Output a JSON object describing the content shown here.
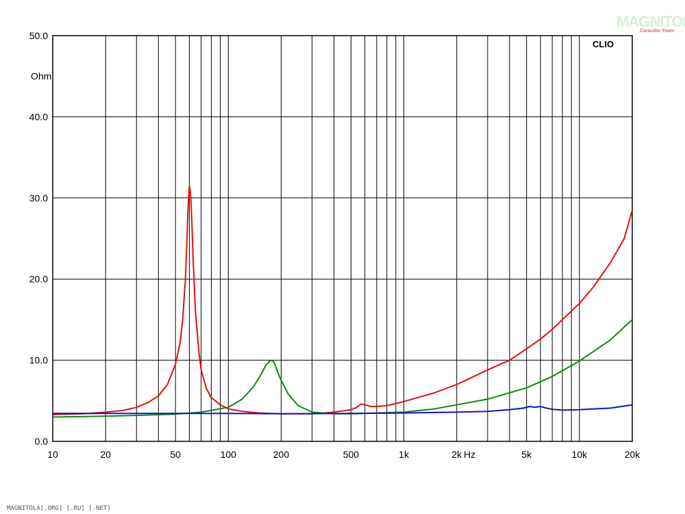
{
  "watermark": {
    "logo_text": "MAGNITOLA",
    "logo_sub": "Caraudio Team"
  },
  "footer": "MAGNITOLA[.ORG] [.RU] [.NET]",
  "chart_data": {
    "type": "line",
    "brand": "CLIO",
    "ylabel": "Ohm",
    "xunit": "Hz",
    "xscale": "log",
    "xlim": [
      10,
      20000
    ],
    "ylim": [
      0,
      50
    ],
    "grid": true,
    "ytick_labels": [
      "0.0",
      "10.0",
      "20.0",
      "30.0",
      "40.0",
      "50.0"
    ],
    "ytick_values": [
      0,
      10,
      20,
      30,
      40,
      50
    ],
    "xtick_labels": [
      "10",
      "20",
      "50",
      "100",
      "200",
      "500",
      "1k",
      "2k",
      "5k",
      "10k",
      "20k"
    ],
    "xtick_values": [
      10,
      20,
      50,
      100,
      200,
      500,
      1000,
      2000,
      5000,
      10000,
      20000
    ],
    "colors": {
      "red": "#e01010",
      "green": "#0a8a0a",
      "blue": "#1010d0"
    },
    "series": [
      {
        "color": "#e01010",
        "x": [
          10,
          15,
          20,
          25,
          30,
          35,
          40,
          45,
          50,
          53,
          55,
          57,
          58,
          59,
          60,
          61,
          62,
          63,
          65,
          68,
          70,
          75,
          80,
          90,
          100,
          120,
          150,
          200,
          250,
          300,
          400,
          500,
          540,
          570,
          600,
          650,
          700,
          800,
          1000,
          1200,
          1500,
          2000,
          2500,
          3000,
          4000,
          5000,
          6000,
          7000,
          8000,
          10000,
          12000,
          15000,
          18000,
          20000
        ],
        "y": [
          3.3,
          3.4,
          3.6,
          3.8,
          4.2,
          4.8,
          5.6,
          7.0,
          9.5,
          12.0,
          15.0,
          20.0,
          24.5,
          29.0,
          31.5,
          30.5,
          27.0,
          22.5,
          16.0,
          11.0,
          8.8,
          6.5,
          5.4,
          4.5,
          4.0,
          3.7,
          3.5,
          3.4,
          3.4,
          3.4,
          3.6,
          3.9,
          4.2,
          4.6,
          4.5,
          4.3,
          4.3,
          4.4,
          4.9,
          5.4,
          6.0,
          7.0,
          8.0,
          8.8,
          10.0,
          11.4,
          12.6,
          13.8,
          15.0,
          17.0,
          19.0,
          22.0,
          25.0,
          28.5
        ]
      },
      {
        "color": "#0a8a0a",
        "x": [
          10,
          20,
          30,
          50,
          70,
          100,
          120,
          140,
          155,
          165,
          175,
          180,
          185,
          190,
          200,
          220,
          250,
          300,
          400,
          500,
          700,
          1000,
          1500,
          2000,
          3000,
          5000,
          7000,
          10000,
          15000,
          20000
        ],
        "y": [
          3.0,
          3.1,
          3.2,
          3.35,
          3.6,
          4.2,
          5.2,
          6.8,
          8.4,
          9.5,
          10.0,
          9.9,
          9.4,
          8.7,
          7.5,
          5.8,
          4.4,
          3.6,
          3.4,
          3.4,
          3.5,
          3.6,
          4.0,
          4.5,
          5.2,
          6.6,
          8.0,
          9.9,
          12.5,
          15.0
        ]
      },
      {
        "color": "#1010d0",
        "x": [
          10,
          20,
          50,
          100,
          200,
          500,
          1000,
          2000,
          3000,
          4000,
          4800,
          5200,
          5600,
          6000,
          6500,
          7000,
          8000,
          10000,
          15000,
          20000
        ],
        "y": [
          3.45,
          3.45,
          3.45,
          3.45,
          3.4,
          3.45,
          3.5,
          3.6,
          3.7,
          3.9,
          4.1,
          4.3,
          4.2,
          4.3,
          4.1,
          3.95,
          3.85,
          3.9,
          4.1,
          4.5
        ]
      }
    ]
  }
}
